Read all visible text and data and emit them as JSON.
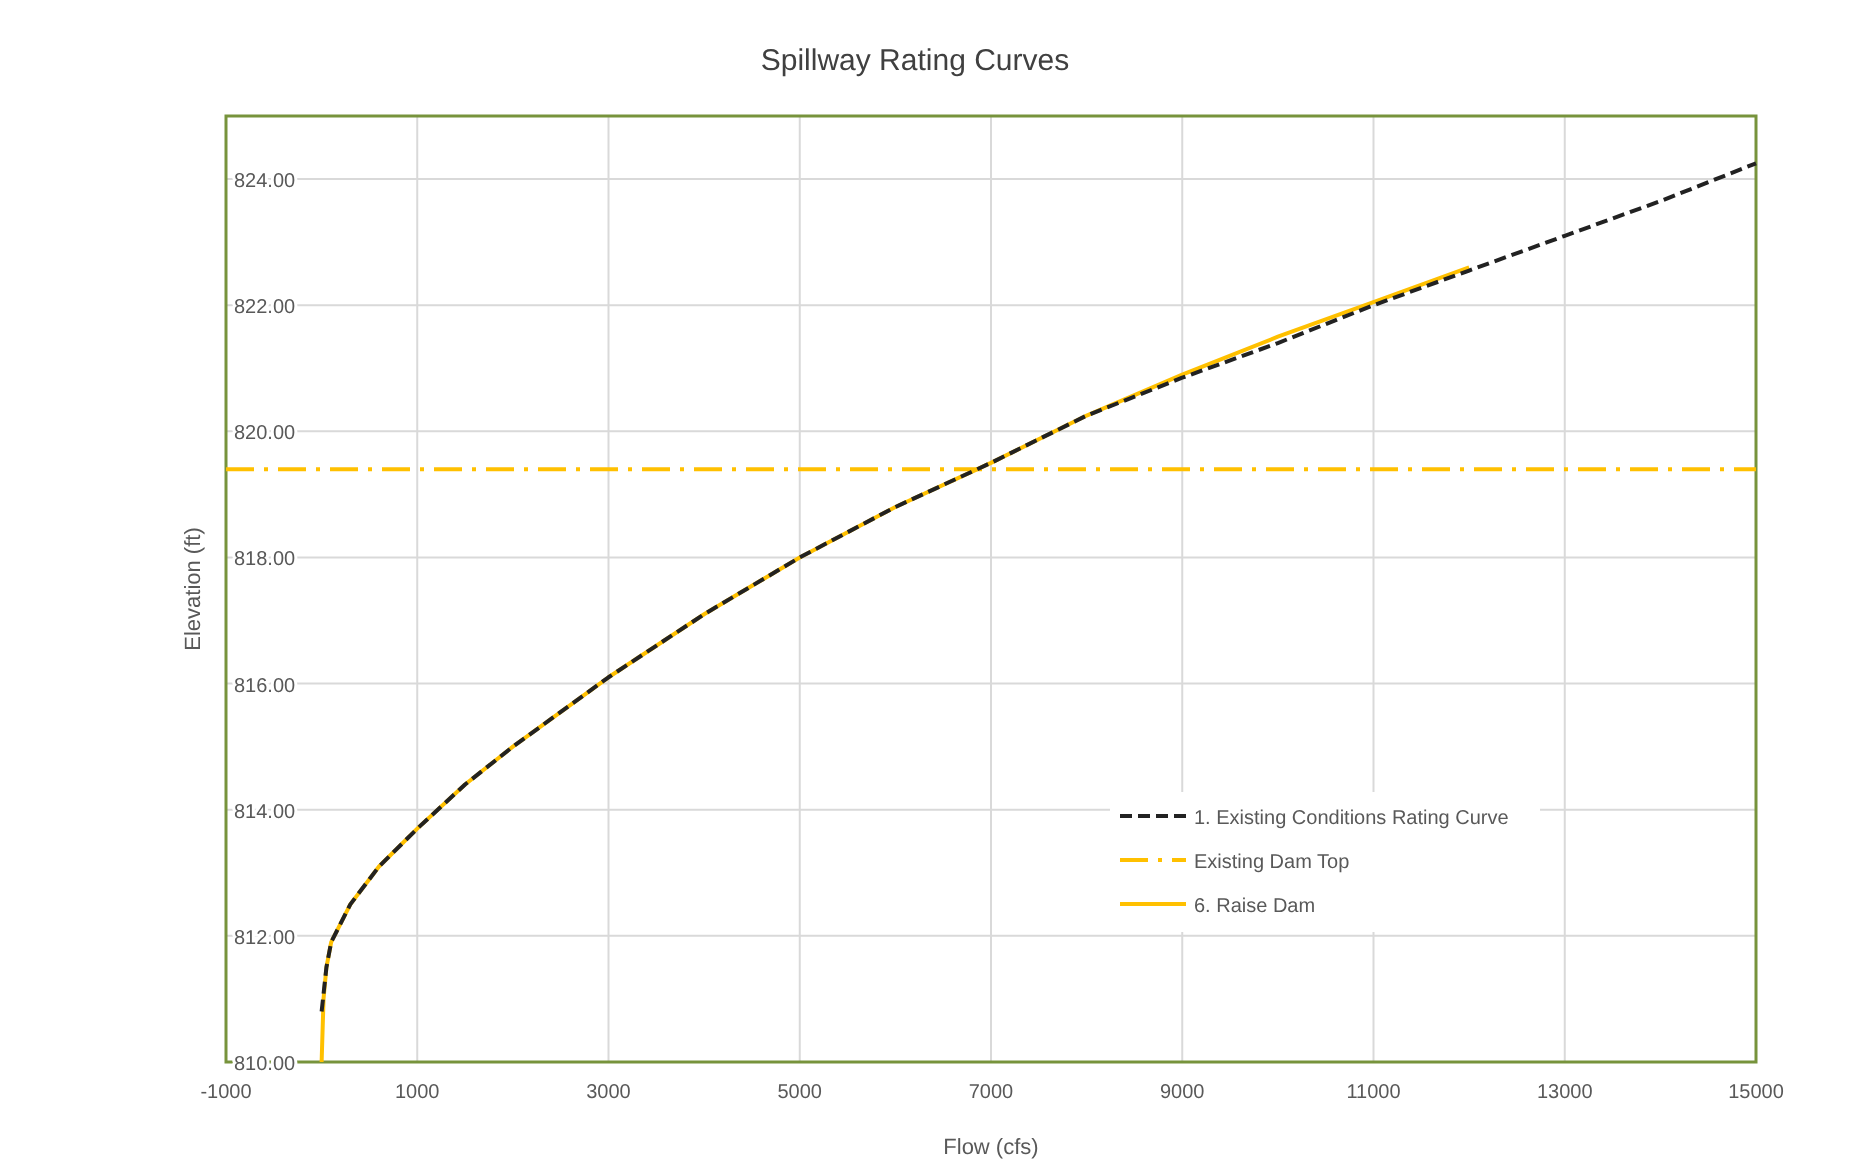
{
  "chart_data": {
    "type": "line",
    "title": "Spillway Rating Curves",
    "xlabel": "Flow (cfs)",
    "ylabel": "Elevation (ft)",
    "xlim": [
      -1000,
      15000
    ],
    "xticks": [
      -1000,
      1000,
      3000,
      5000,
      7000,
      9000,
      11000,
      13000,
      15000
    ],
    "ylim": [
      810,
      825
    ],
    "yticks": [
      {
        "value": 810,
        "label": "810.00"
      },
      {
        "value": 812,
        "label": "812.00"
      },
      {
        "value": 814,
        "label": "814.00"
      },
      {
        "value": 816,
        "label": "816.00"
      },
      {
        "value": 818,
        "label": "818.00"
      },
      {
        "value": 820,
        "label": "820.00"
      },
      {
        "value": 822,
        "label": "822.00"
      },
      {
        "value": 824,
        "label": "824.00"
      }
    ],
    "grid": true,
    "legend": "bottom right",
    "marker": "none",
    "series": [
      {
        "name": "1. Existing Conditions Rating Curve",
        "color": "#222222",
        "line_style": "dashed",
        "x": [
          0,
          50,
          100,
          300,
          600,
          1000,
          1500,
          2000,
          3000,
          4000,
          5000,
          6000,
          7000,
          8000,
          9000,
          10000,
          11000,
          12000,
          13000,
          14000,
          15000
        ],
        "values": [
          810.8,
          811.5,
          811.9,
          812.5,
          813.1,
          813.7,
          814.4,
          815.0,
          816.1,
          817.1,
          818.0,
          818.8,
          819.5,
          820.25,
          820.85,
          821.4,
          822.0,
          822.55,
          823.1,
          823.65,
          824.25
        ]
      },
      {
        "name": "Existing Dam Top",
        "color": "#ffc000",
        "line_style": "dashdot",
        "x": [
          -1000,
          15000
        ],
        "values": [
          819.4,
          819.4
        ]
      },
      {
        "name": "6. Raise Dam",
        "color": "#ffc000",
        "line_style": "solid",
        "x": [
          0,
          20,
          50,
          100,
          300,
          600,
          1000,
          1500,
          2000,
          3000,
          4000,
          5000,
          6000,
          7000,
          8000,
          9000,
          10000,
          11000,
          12000
        ],
        "values": [
          810.0,
          811.0,
          811.5,
          811.9,
          812.5,
          813.1,
          813.7,
          814.4,
          815.0,
          816.1,
          817.1,
          818.0,
          818.8,
          819.5,
          820.25,
          820.9,
          821.5,
          822.05,
          822.6
        ]
      }
    ]
  }
}
